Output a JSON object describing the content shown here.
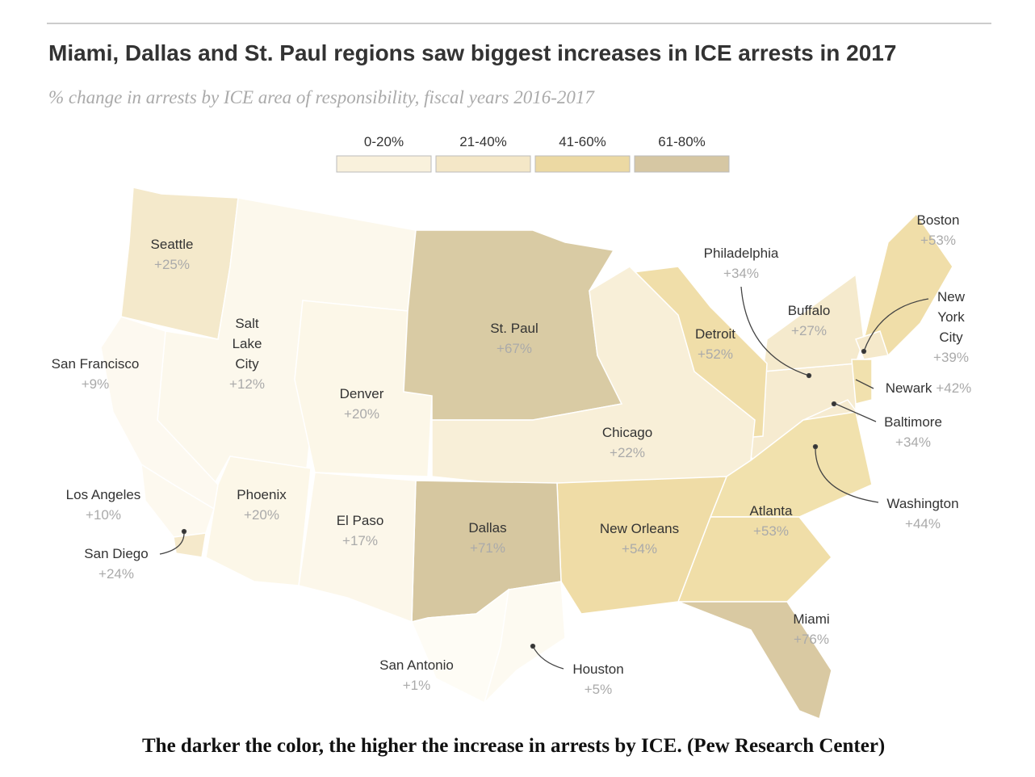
{
  "header": {
    "title": "Miami, Dallas and St. Paul regions saw biggest increases in ICE arrests in 2017",
    "subtitle": "% change in arrests by ICE area of responsibility, fiscal years 2016-2017"
  },
  "legend": [
    {
      "label": "0-20%",
      "color": "#f9f1dc"
    },
    {
      "label": "21-40%",
      "color": "#f4e7c7"
    },
    {
      "label": "41-60%",
      "color": "#ecd9a3"
    },
    {
      "label": "61-80%",
      "color": "#d6c7a3"
    }
  ],
  "regions": [
    {
      "name": "Seattle",
      "label": "+25%",
      "color": "#f4e9cb"
    },
    {
      "name": "Salt Lake City",
      "label": "+12%",
      "color": "#fcf8ec"
    },
    {
      "name": "San Francisco",
      "label": "+9%",
      "color": "#fdf9f0"
    },
    {
      "name": "Denver",
      "label": "+20%",
      "color": "#fcf7e8"
    },
    {
      "name": "St. Paul",
      "label": "+67%",
      "color": "#d9cba4"
    },
    {
      "name": "Philadelphia",
      "label": "+34%",
      "color": "#f6ebd0"
    },
    {
      "name": "Boston",
      "label": "+53%",
      "color": "#f0dea9"
    },
    {
      "name": "Buffalo",
      "label": "+27%",
      "color": "#f5eacd"
    },
    {
      "name": "Detroit",
      "label": "+52%",
      "color": "#f0dea9"
    },
    {
      "name": "New York City",
      "label": "+39%",
      "color": "#f5e9cb"
    },
    {
      "name": "Newark",
      "label": "+42%",
      "color": "#f1e1ae"
    },
    {
      "name": "Baltimore",
      "label": "+34%",
      "color": "#f6ebd0"
    },
    {
      "name": "Chicago",
      "label": "+22%",
      "color": "#f8efd8"
    },
    {
      "name": "Washington",
      "label": "+44%",
      "color": "#f1e1ad"
    },
    {
      "name": "Atlanta",
      "label": "+53%",
      "color": "#f0dea8"
    },
    {
      "name": "New Orleans",
      "label": "+54%",
      "color": "#efdca6"
    },
    {
      "name": "Dallas",
      "label": "+71%",
      "color": "#d6c7a0"
    },
    {
      "name": "El Paso",
      "label": "+17%",
      "color": "#fcf7ea"
    },
    {
      "name": "Phoenix",
      "label": "+20%",
      "color": "#fcf7e8"
    },
    {
      "name": "Los Angeles",
      "label": "+10%",
      "color": "#fdf9ef"
    },
    {
      "name": "San Diego",
      "label": "+24%",
      "color": "#f5e9cb"
    },
    {
      "name": "Miami",
      "label": "+76%",
      "color": "#d9c9a2"
    },
    {
      "name": "San Antonio",
      "label": "+1%",
      "color": "#fefcf5"
    },
    {
      "name": "Houston",
      "label": "+5%",
      "color": "#fdfaf1"
    }
  ],
  "caption": "The darker the color, the higher the increase in arrests by ICE. (Pew Research Center)"
}
